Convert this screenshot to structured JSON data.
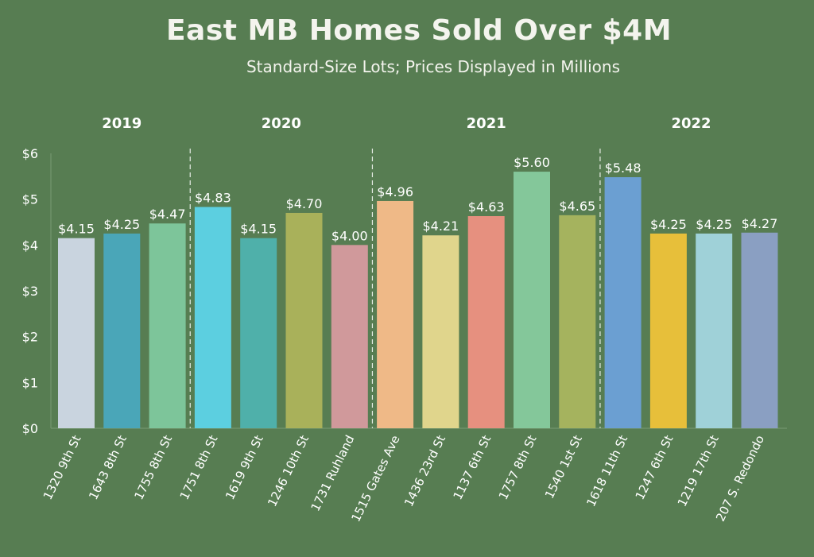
{
  "chart_data": {
    "type": "bar",
    "title": "East MB Homes Sold Over $4M",
    "subtitle": "Standard-Size Lots; Prices Displayed in Millions",
    "ylim": [
      0,
      6
    ],
    "y_ticks": [
      "$0",
      "$1",
      "$2",
      "$3",
      "$4",
      "$5",
      "$6"
    ],
    "groups": [
      {
        "label": "2019",
        "start": 0,
        "count": 3
      },
      {
        "label": "2020",
        "start": 3,
        "count": 4
      },
      {
        "label": "2021",
        "start": 7,
        "count": 5
      },
      {
        "label": "2022",
        "start": 12,
        "count": 4
      }
    ],
    "categories": [
      "1320 9th St",
      "1643 8th St",
      "1755 8th St",
      "1751 8th St",
      "1619 9th St",
      "1246 10th St",
      "1731 Ruhland",
      "1515 Gates Ave",
      "1436 23rd St",
      "1137 6th St",
      "1757 8th St",
      "1540 1st St",
      "1618 11th St",
      "1247 6th St",
      "1219 17th St",
      "207 S. Redondo"
    ],
    "values": [
      4.15,
      4.25,
      4.47,
      4.83,
      4.15,
      4.7,
      4.0,
      4.96,
      4.21,
      4.63,
      5.6,
      4.65,
      5.48,
      4.25,
      4.25,
      4.27
    ],
    "value_labels": [
      "$4.15",
      "$4.25",
      "$4.47",
      "$4.83",
      "$4.15",
      "$4.70",
      "$4.00",
      "$4.96",
      "$4.21",
      "$4.63",
      "$5.60",
      "$4.65",
      "$5.48",
      "$4.25",
      "$4.25",
      "$4.27"
    ],
    "colors": [
      "#c9d4df",
      "#4aa6b8",
      "#7dc59a",
      "#5ccfe0",
      "#4fb0aa",
      "#a9b15a",
      "#d0999b",
      "#efb987",
      "#e0d58c",
      "#e6907f",
      "#84c79a",
      "#a5b35e",
      "#6b9fd2",
      "#e7bf3a",
      "#9fd1d8",
      "#8a9fc2"
    ],
    "grid": false,
    "legend": "none"
  }
}
